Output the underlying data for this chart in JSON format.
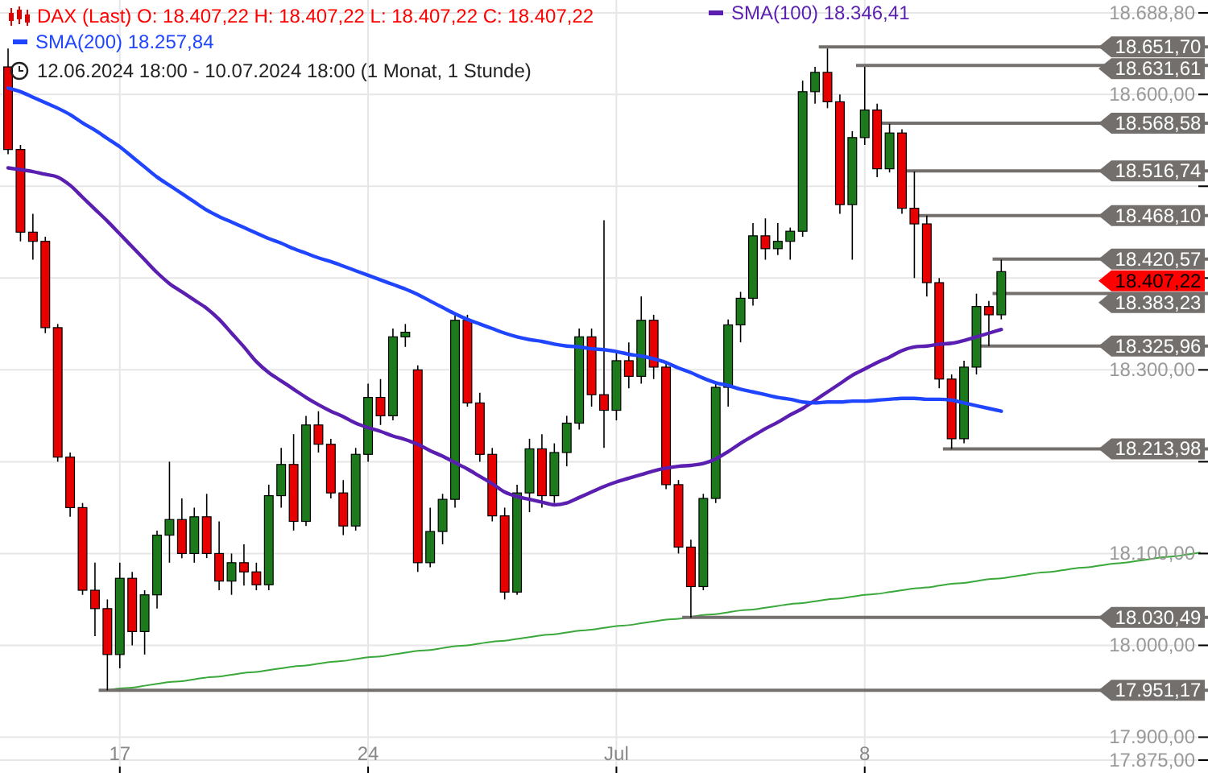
{
  "chart_data": {
    "type": "candlestick",
    "title": "DAX (Last)  O: 18.407,22  H: 18.407,22  L: 18.407,22  C: 18.407,22",
    "subtitle": "12.06.2024 18:00 - 10.07.2024 18:00  (1 Monat, 1 Stunde)",
    "categories": [
      null,
      null,
      null,
      null,
      null,
      null,
      null,
      null,
      null,
      "17",
      null,
      null,
      null,
      null,
      null,
      null,
      null,
      null,
      null,
      null,
      null,
      null,
      null,
      null,
      null,
      null,
      null,
      null,
      null,
      "24",
      null,
      null,
      null,
      null,
      null,
      null,
      null,
      null,
      null,
      null,
      null,
      null,
      null,
      null,
      null,
      null,
      null,
      null,
      null,
      "Jul",
      null,
      null,
      null,
      null,
      null,
      null,
      null,
      null,
      null,
      null,
      null,
      null,
      null,
      null,
      null,
      null,
      null,
      null,
      null,
      "8",
      null,
      null,
      null,
      null,
      null,
      null,
      null,
      null,
      null,
      null,
      null,
      null,
      null,
      null,
      null,
      null,
      null,
      null,
      null,
      null,
      null,
      null,
      null,
      null,
      null,
      null,
      null
    ],
    "ohlc": [
      [
        18630,
        18650,
        18535,
        18540
      ],
      [
        18540,
        18545,
        18440,
        18450
      ],
      [
        18450,
        18470,
        18420,
        18440
      ],
      [
        18440,
        18445,
        18340,
        18346
      ],
      [
        18346,
        18350,
        18200,
        18205
      ],
      [
        18205,
        18210,
        18140,
        18150
      ],
      [
        18150,
        18155,
        18055,
        18060
      ],
      [
        18060,
        18090,
        18010,
        18040
      ],
      [
        18040,
        18050,
        17951,
        17990
      ],
      [
        17990,
        18090,
        17975,
        18073
      ],
      [
        18073,
        18080,
        18000,
        18015
      ],
      [
        18015,
        18060,
        17990,
        18055
      ],
      [
        18055,
        18125,
        18040,
        18120
      ],
      [
        18120,
        18200,
        18090,
        18137
      ],
      [
        18137,
        18160,
        18095,
        18100
      ],
      [
        18100,
        18150,
        18090,
        18140
      ],
      [
        18140,
        18165,
        18095,
        18100
      ],
      [
        18100,
        18135,
        18060,
        18070
      ],
      [
        18070,
        18100,
        18055,
        18090
      ],
      [
        18090,
        18110,
        18065,
        18080
      ],
      [
        18080,
        18090,
        18060,
        18066
      ],
      [
        18066,
        18175,
        18060,
        18163
      ],
      [
        18163,
        18215,
        18150,
        18197
      ],
      [
        18197,
        18230,
        18125,
        18135
      ],
      [
        18135,
        18250,
        18130,
        18240
      ],
      [
        18240,
        18255,
        18210,
        18219
      ],
      [
        18219,
        18225,
        18160,
        18166
      ],
      [
        18166,
        18180,
        18120,
        18130
      ],
      [
        18130,
        18215,
        18125,
        18208
      ],
      [
        18208,
        18285,
        18200,
        18270
      ],
      [
        18270,
        18290,
        18240,
        18250
      ],
      [
        18250,
        18345,
        18245,
        18336
      ],
      [
        18336,
        18350,
        18325,
        18341
      ],
      [
        18300,
        18305,
        18080,
        18090
      ],
      [
        18090,
        18150,
        18085,
        18124
      ],
      [
        18124,
        18165,
        18110,
        18159
      ],
      [
        18159,
        18360,
        18150,
        18354
      ],
      [
        18354,
        18360,
        18260,
        18264
      ],
      [
        18264,
        18275,
        18200,
        18208
      ],
      [
        18208,
        18215,
        18135,
        18141
      ],
      [
        18141,
        18150,
        18050,
        18058
      ],
      [
        18058,
        18175,
        18055,
        18166
      ],
      [
        18166,
        18225,
        18145,
        18214
      ],
      [
        18214,
        18230,
        18150,
        18163
      ],
      [
        18163,
        18220,
        18155,
        18210
      ],
      [
        18210,
        18250,
        18195,
        18242
      ],
      [
        18242,
        18345,
        18235,
        18336
      ],
      [
        18336,
        18345,
        18260,
        18273
      ],
      [
        18273,
        18463,
        18215,
        18256
      ],
      [
        18256,
        18320,
        18245,
        18310
      ],
      [
        18310,
        18330,
        18280,
        18293
      ],
      [
        18293,
        18380,
        18285,
        18354
      ],
      [
        18354,
        18360,
        18290,
        18303
      ],
      [
        18303,
        18310,
        18170,
        18175
      ],
      [
        18175,
        18180,
        18100,
        18107
      ],
      [
        18107,
        18115,
        18030,
        18064
      ],
      [
        18064,
        18165,
        18060,
        18160
      ],
      [
        18160,
        18285,
        18155,
        18281
      ],
      [
        18281,
        18355,
        18260,
        18349
      ],
      [
        18349,
        18385,
        18330,
        18378
      ],
      [
        18378,
        18460,
        18370,
        18446
      ],
      [
        18446,
        18465,
        18420,
        18432
      ],
      [
        18432,
        18460,
        18425,
        18440
      ],
      [
        18440,
        18455,
        18420,
        18451
      ],
      [
        18451,
        18615,
        18445,
        18603
      ],
      [
        18603,
        18630,
        18590,
        18624
      ],
      [
        18624,
        18650,
        18585,
        18592
      ],
      [
        18592,
        18600,
        18470,
        18480
      ],
      [
        18480,
        18560,
        18420,
        18553
      ],
      [
        18553,
        18630,
        18545,
        18583
      ],
      [
        18583,
        18590,
        18510,
        18519
      ],
      [
        18519,
        18568,
        18515,
        18558
      ],
      [
        18558,
        18562,
        18470,
        18476
      ],
      [
        18476,
        18516,
        18400,
        18459
      ],
      [
        18459,
        18468,
        18380,
        18395
      ],
      [
        18395,
        18400,
        18280,
        18290
      ],
      [
        18290,
        18295,
        18214,
        18225
      ],
      [
        18225,
        18310,
        18220,
        18303
      ],
      [
        18303,
        18383,
        18295,
        18369
      ],
      [
        18369,
        18375,
        18326,
        18360
      ],
      [
        18360,
        18420,
        18355,
        18407
      ],
      null,
      null,
      null,
      null,
      null,
      null,
      null,
      null,
      null,
      null,
      null,
      null,
      null,
      null,
      null,
      null
    ],
    "series": [
      {
        "name": "SMA(100)  18.346,41",
        "type": "line",
        "color": "#5a1fb0",
        "values": [
          18520,
          18518,
          18516,
          18513,
          18510,
          18501,
          18488,
          18475,
          18462,
          18448,
          18434,
          18420,
          18406,
          18394,
          18385,
          18376,
          18367,
          18355,
          18340,
          18325,
          18309,
          18297,
          18288,
          18279,
          18270,
          18262,
          18255,
          18249,
          18242,
          18237,
          18233,
          18228,
          18224,
          18219,
          18212,
          18206,
          18199,
          18192,
          18184,
          18176,
          18167,
          18162,
          18159,
          18156,
          18153,
          18155,
          18161,
          18167,
          18173,
          18178,
          18182,
          18186,
          18190,
          18193,
          18195,
          18196,
          18198,
          18203,
          18211,
          18220,
          18228,
          18236,
          18243,
          18251,
          18258,
          18267,
          18276,
          18285,
          18294,
          18301,
          18308,
          18314,
          18321,
          18325,
          18326,
          18328,
          18329,
          18332,
          18336,
          18340,
          18344,
          null,
          null,
          null,
          null,
          null,
          null,
          null,
          null,
          null,
          null,
          null,
          null,
          null,
          null,
          null,
          null
        ]
      },
      {
        "name": "SMA(200)  18.257,84",
        "type": "line",
        "color": "#1f45ff",
        "values": [
          18607,
          18603,
          18597,
          18591,
          18585,
          18578,
          18569,
          18561,
          18552,
          18543,
          18532,
          18521,
          18510,
          18501,
          18492,
          18483,
          18474,
          18467,
          18461,
          18455,
          18449,
          18443,
          18438,
          18432,
          18427,
          18422,
          18418,
          18413,
          18408,
          18403,
          18398,
          18393,
          18388,
          18382,
          18375,
          18368,
          18361,
          18355,
          18350,
          18345,
          18340,
          18336,
          18333,
          18331,
          18328,
          18326,
          18325,
          18323,
          18322,
          18320,
          18317,
          18315,
          18312,
          18308,
          18302,
          18297,
          18291,
          18286,
          18283,
          18279,
          18276,
          18273,
          18270,
          18268,
          18265,
          18264,
          18265,
          18265,
          18266,
          18266,
          18267,
          18268,
          18269,
          18269,
          18268,
          18268,
          18267,
          18264,
          18261,
          18258,
          18255,
          null,
          null,
          null,
          null,
          null,
          null,
          null,
          null,
          null,
          null,
          null,
          null,
          null,
          null,
          null,
          null
        ]
      },
      {
        "type": "line",
        "color": "#3aa83a",
        "values": [
          null,
          null,
          null,
          null,
          null,
          null,
          null,
          null,
          17951,
          17953,
          17954,
          17956,
          17958,
          17960,
          17961,
          17963,
          17965,
          17966,
          17968,
          17970,
          17971,
          17973,
          17975,
          17977,
          17978,
          17980,
          17982,
          17983,
          17985,
          17987,
          17988,
          17990,
          17992,
          17994,
          17995,
          17997,
          17999,
          18000,
          18002,
          18004,
          18005,
          18007,
          18009,
          18011,
          18012,
          18014,
          18016,
          18017,
          18019,
          18021,
          18022,
          18024,
          18026,
          18028,
          18029,
          18031,
          18033,
          18034,
          18036,
          18038,
          18039,
          18041,
          18043,
          18045,
          18046,
          18048,
          18050,
          18051,
          18053,
          18055,
          18056,
          18058,
          18060,
          18062,
          18063,
          18065,
          18067,
          18068,
          18070,
          18072,
          18073,
          18075,
          18077,
          18079,
          18080,
          18082,
          18084,
          18085,
          18087,
          18089,
          18090,
          18092,
          18094,
          18096,
          18097,
          18099,
          18101
        ]
      }
    ],
    "ylim": [
      17875,
      18688.8
    ],
    "yticks": [
      {
        "value": 17875,
        "label": "17.875,00"
      },
      {
        "value": 17900,
        "label": "17.900,00"
      },
      {
        "value": 18000,
        "label": "18.000,00"
      },
      {
        "value": 18100,
        "label": "18.100,00"
      },
      {
        "value": 18200,
        "label": null
      },
      {
        "value": 18300,
        "label": "18.300,00"
      },
      {
        "value": 18400,
        "label": null
      },
      {
        "value": 18500,
        "label": null
      },
      {
        "value": 18600,
        "label": "18.600,00"
      },
      {
        "value": 18688.8,
        "label": "18.688,80"
      }
    ],
    "ref_lines": [
      {
        "axis": "y",
        "value": 18651.7,
        "label": "18.651,70",
        "color": "#736f6c"
      },
      {
        "axis": "y",
        "value": 18631.61,
        "label": "18.631,61",
        "color": "#736f6c"
      },
      {
        "axis": "y",
        "value": 18568.58,
        "label": "18.568,58",
        "color": "#736f6c"
      },
      {
        "axis": "y",
        "value": 18516.74,
        "label": "18.516,74",
        "color": "#736f6c"
      },
      {
        "axis": "y",
        "value": 18468.1,
        "label": "18.468,10",
        "color": "#736f6c"
      },
      {
        "axis": "y",
        "value": 18420.57,
        "label": "18.420,57",
        "color": "#736f6c"
      },
      {
        "axis": "y",
        "value": 18383.23,
        "label": "18.383,23",
        "color": "#736f6c"
      },
      {
        "axis": "y",
        "value": 18325.96,
        "label": "18.325,96",
        "color": "#736f6c"
      },
      {
        "axis": "y",
        "value": 18213.98,
        "label": "18.213,98",
        "color": "#736f6c"
      },
      {
        "axis": "y",
        "value": 18030.49,
        "label": "18.030,49",
        "color": "#736f6c"
      },
      {
        "axis": "y",
        "value": 17951.17,
        "label": "17.951,17",
        "color": "#736f6c"
      }
    ],
    "annotations": [
      "18.407,22"
    ],
    "grid": true,
    "legend": "top left"
  }
}
